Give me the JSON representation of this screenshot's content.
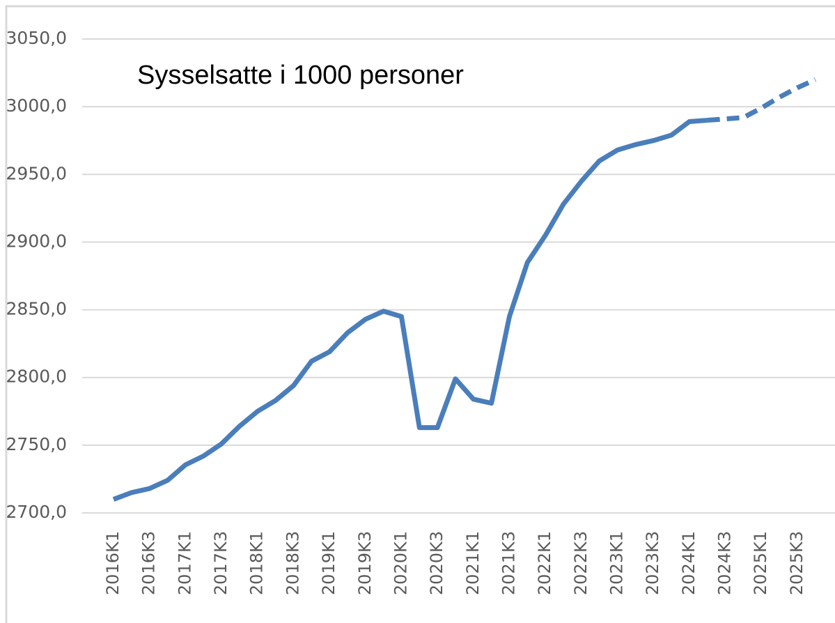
{
  "chart_data": {
    "type": "line",
    "title": "Sysselsatte i 1000 personer",
    "categories": [
      "2016K1",
      null,
      "2016K3",
      null,
      "2017K1",
      null,
      "2017K3",
      null,
      "2018K1",
      null,
      "2018K3",
      null,
      "2019K1",
      null,
      "2019K3",
      null,
      "2020K1",
      null,
      "2020K3",
      null,
      "2021K1",
      null,
      "2021K3",
      null,
      "2022K1",
      null,
      "2022K3",
      null,
      "2023K1",
      null,
      "2023K3",
      null,
      "2024K1",
      null,
      "2024K3",
      null,
      "2025K1",
      null,
      "2025K3",
      null
    ],
    "values": [
      2710,
      2715,
      2718,
      2724,
      2735.5,
      2742,
      2751,
      2764,
      2775,
      2783,
      2794,
      2812,
      2819,
      2833,
      2843,
      2849,
      2845,
      2763,
      2763,
      2799,
      2784,
      2781,
      2845,
      2885,
      2905,
      2928,
      2945,
      2960,
      2968,
      2972,
      2975,
      2979,
      2989,
      2990,
      2991,
      2992,
      2999,
      3007,
      3014,
      3020
    ],
    "color": "#4a7ebb",
    "dashed_from_index": 33,
    "ylim": [
      2700,
      3050
    ],
    "yticks": [
      {
        "value": 2700,
        "label": "2700,0"
      },
      {
        "value": 2750,
        "label": "2750,0"
      },
      {
        "value": 2800,
        "label": "2800,0"
      },
      {
        "value": 2850,
        "label": "2850,0"
      },
      {
        "value": 2900,
        "label": "2900,0"
      },
      {
        "value": 2950,
        "label": "2950,0"
      },
      {
        "value": 3000,
        "label": "3000,0"
      },
      {
        "value": 3050,
        "label": "3050,0"
      }
    ],
    "grid": true
  }
}
